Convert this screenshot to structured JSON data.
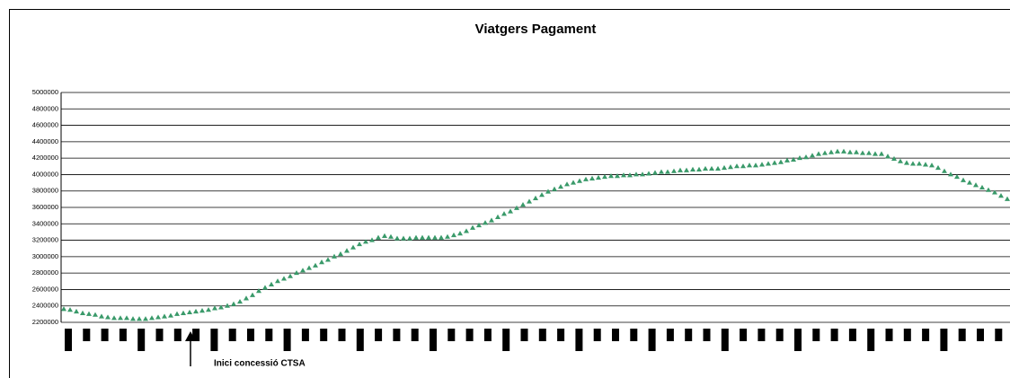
{
  "chart_data": {
    "type": "line",
    "title": "Viatgers Pagament",
    "annotation": "Inici concessió CTSA",
    "color": "#3a9a6a",
    "grid": true,
    "ylim": [
      2200000,
      5000000
    ],
    "yticks": [
      2200000,
      2400000,
      2600000,
      2800000,
      3000000,
      3200000,
      3400000,
      3600000,
      3800000,
      4000000,
      4200000,
      4400000,
      4600000,
      4800000,
      5000000
    ],
    "values": [
      2360000,
      2350000,
      2330000,
      2310000,
      2300000,
      2290000,
      2270000,
      2260000,
      2250000,
      2250000,
      2250000,
      2240000,
      2240000,
      2240000,
      2250000,
      2260000,
      2270000,
      2280000,
      2300000,
      2310000,
      2320000,
      2330000,
      2340000,
      2350000,
      2370000,
      2380000,
      2400000,
      2420000,
      2450000,
      2490000,
      2530000,
      2580000,
      2620000,
      2660000,
      2700000,
      2730000,
      2760000,
      2800000,
      2830000,
      2860000,
      2890000,
      2930000,
      2960000,
      3000000,
      3030000,
      3070000,
      3110000,
      3150000,
      3180000,
      3200000,
      3230000,
      3250000,
      3240000,
      3220000,
      3220000,
      3220000,
      3230000,
      3230000,
      3230000,
      3230000,
      3230000,
      3240000,
      3260000,
      3280000,
      3310000,
      3350000,
      3380000,
      3410000,
      3440000,
      3480000,
      3520000,
      3550000,
      3590000,
      3630000,
      3670000,
      3710000,
      3750000,
      3790000,
      3820000,
      3850000,
      3880000,
      3900000,
      3920000,
      3940000,
      3950000,
      3960000,
      3970000,
      3980000,
      3980000,
      3990000,
      3990000,
      4000000,
      4000000,
      4010000,
      4020000,
      4030000,
      4030000,
      4040000,
      4050000,
      4050000,
      4060000,
      4060000,
      4070000,
      4070000,
      4070000,
      4080000,
      4090000,
      4100000,
      4100000,
      4110000,
      4110000,
      4120000,
      4130000,
      4140000,
      4150000,
      4170000,
      4180000,
      4200000,
      4210000,
      4230000,
      4250000,
      4260000,
      4270000,
      4280000,
      4280000,
      4270000,
      4270000,
      4260000,
      4260000,
      4250000,
      4250000,
      4220000,
      4190000,
      4160000,
      4140000,
      4130000,
      4130000,
      4120000,
      4110000,
      4080000,
      4040000,
      4000000,
      3970000,
      3930000,
      3900000,
      3870000,
      3840000,
      3810000,
      3780000,
      3740000,
      3700000
    ]
  }
}
